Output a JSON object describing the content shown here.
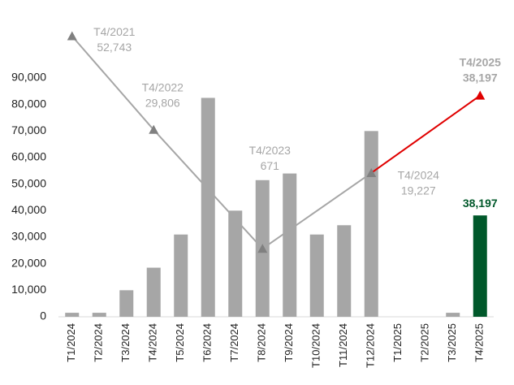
{
  "chart_data": {
    "type": "bar",
    "categories": [
      "T1/2024",
      "T2/2024",
      "T3/2024",
      "T4/2024",
      "T5/2024",
      "T6/2024",
      "T7/2024",
      "T8/2024",
      "T9/2024",
      "T10/2024",
      "T11/2024",
      "T12/2024",
      "T1/2025",
      "T2/2025",
      "T3/2025",
      "T4/2025"
    ],
    "values": [
      1500,
      1500,
      10000,
      18500,
      31000,
      82500,
      40000,
      51500,
      54000,
      31000,
      34500,
      70000,
      0,
      0,
      1500,
      38197
    ],
    "value_labels": [
      null,
      null,
      null,
      null,
      null,
      null,
      null,
      null,
      null,
      null,
      null,
      null,
      null,
      null,
      null,
      "38,197"
    ],
    "colors": [
      "#a6a6a6",
      "#a6a6a6",
      "#a6a6a6",
      "#a6a6a6",
      "#a6a6a6",
      "#a6a6a6",
      "#a6a6a6",
      "#a6a6a6",
      "#a6a6a6",
      "#a6a6a6",
      "#a6a6a6",
      "#a6a6a6",
      "#a6a6a6",
      "#a6a6a6",
      "#a6a6a6",
      "#00582a"
    ],
    "ylim": [
      0,
      90000
    ],
    "yticks": [
      0,
      {
        "value": 10000,
        "label": "10,000"
      },
      {
        "value": 20000,
        "label": "20,000"
      },
      {
        "value": 30000,
        "label": "30,000"
      },
      {
        "value": 40000,
        "label": "40,000"
      },
      {
        "value": 50000,
        "label": "50,000"
      },
      {
        "value": 60000,
        "label": "60,000"
      },
      {
        "value": 70000,
        "label": "70,000"
      },
      {
        "value": 80000,
        "label": "80,000"
      },
      {
        "value": 90000,
        "label": "90,000"
      }
    ],
    "y2lim": [
      -16000,
      42500
    ],
    "line": {
      "axis": "y2",
      "color": "#a6a6a6",
      "last_color": "#e00000",
      "x": [
        "T1/2024",
        "T4/2024",
        "T8/2024",
        "T12/2024",
        "T4/2025"
      ],
      "period_labels": [
        "T4/2021",
        "T4/2022",
        "T4/2023",
        "T4/2024",
        "T4/2025"
      ],
      "values": [
        52743,
        29806,
        671,
        19227,
        38197
      ],
      "value_labels": [
        "52,743",
        "29,806",
        "671",
        "19,227",
        "38,197"
      ]
    }
  }
}
